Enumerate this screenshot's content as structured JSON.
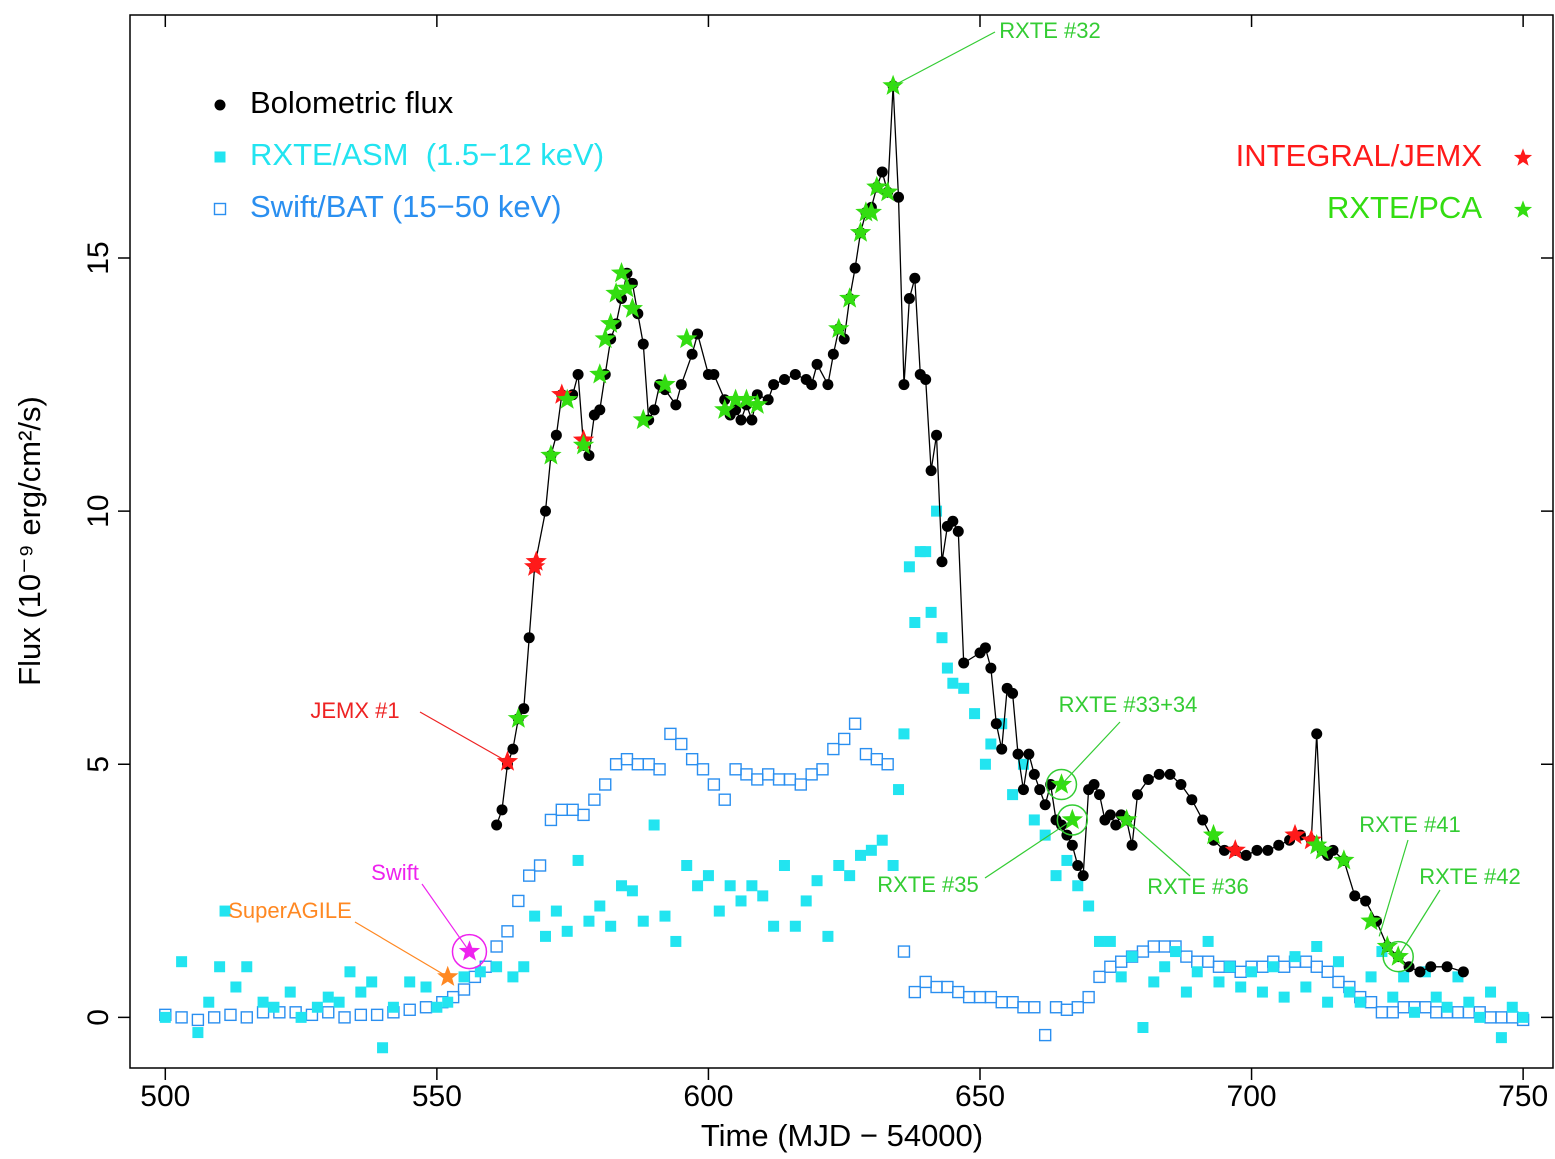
{
  "chart_data": {
    "type": "scatter",
    "x_label": "Time (MJD − 54000)",
    "y_label": "Flux (10⁻⁹ erg/cm²/s)",
    "xlim": [
      493.5,
      755.5
    ],
    "ylim": [
      -1,
      19.8
    ],
    "xticks": [
      500,
      550,
      600,
      650,
      700,
      750
    ],
    "yticks": [
      0,
      5,
      10,
      15
    ],
    "series": [
      {
        "name": "Bolometric flux",
        "color": "#000000",
        "marker": "dot",
        "line": true,
        "x": [
          561,
          562,
          563,
          564,
          565,
          566,
          567,
          568,
          570,
          571,
          572,
          573,
          575,
          576,
          577,
          578,
          579,
          580,
          581,
          582,
          583,
          584,
          585,
          586,
          587,
          588,
          589,
          590,
          591,
          592,
          594,
          595,
          597,
          598,
          600,
          601,
          603,
          604,
          605,
          606,
          607,
          608,
          609,
          611,
          612,
          614,
          616,
          618,
          619,
          620,
          622,
          623,
          624,
          625,
          626,
          627,
          628,
          629,
          630,
          631,
          632,
          633,
          634,
          635,
          636,
          637,
          638,
          639,
          640,
          641,
          642,
          643,
          644,
          645,
          646,
          647,
          650,
          651,
          652,
          653,
          654,
          655,
          656,
          657,
          658,
          659,
          660,
          661,
          662,
          663,
          664,
          665,
          666,
          667,
          668,
          669,
          670,
          671,
          672,
          673,
          674,
          675,
          676,
          677,
          678,
          679,
          681,
          683,
          685,
          687,
          689,
          691,
          693,
          695,
          697,
          699,
          701,
          703,
          705,
          707,
          709,
          711,
          712,
          713,
          714,
          715,
          717,
          719,
          721,
          723,
          725,
          727,
          729,
          731,
          733,
          736,
          739
        ],
        "values": [
          3.8,
          4.1,
          5.0,
          5.3,
          5.9,
          6.1,
          7.5,
          8.9,
          10.0,
          11.1,
          11.5,
          12.3,
          12.3,
          12.7,
          11.3,
          11.1,
          11.9,
          12.0,
          12.7,
          13.4,
          13.7,
          14.2,
          14.7,
          14.5,
          13.9,
          13.3,
          11.8,
          12.0,
          12.5,
          12.4,
          12.1,
          12.5,
          13.1,
          13.5,
          12.7,
          12.7,
          12.2,
          11.9,
          12.0,
          11.8,
          12.1,
          11.8,
          12.3,
          12.2,
          12.5,
          12.6,
          12.7,
          12.6,
          12.5,
          12.9,
          12.5,
          13.1,
          13.6,
          13.4,
          14.2,
          14.8,
          15.5,
          15.9,
          16.0,
          16.4,
          16.7,
          16.3,
          18.4,
          16.2,
          12.5,
          14.2,
          14.6,
          12.7,
          12.6,
          10.8,
          11.5,
          9.0,
          9.7,
          9.8,
          9.6,
          7.0,
          7.2,
          7.3,
          6.9,
          5.8,
          5.3,
          6.5,
          6.4,
          5.2,
          4.5,
          5.2,
          4.8,
          4.5,
          4.2,
          4.6,
          3.9,
          3.8,
          3.6,
          3.4,
          3.0,
          2.8,
          4.5,
          4.6,
          4.4,
          3.9,
          4.0,
          3.8,
          4.0,
          3.9,
          3.4,
          4.4,
          4.7,
          4.8,
          4.8,
          4.6,
          4.3,
          3.9,
          3.5,
          3.3,
          3.3,
          3.2,
          3.3,
          3.3,
          3.4,
          3.5,
          3.6,
          3.5,
          5.6,
          3.3,
          3.2,
          3.3,
          3.1,
          2.4,
          2.3,
          1.9,
          1.4,
          1.2,
          1.0,
          0.9,
          1.0,
          1.0,
          0.9
        ]
      },
      {
        "name": "RXTE/ASM  (1.5−12 keV)",
        "color": "#22e4f0",
        "marker": "square-filled",
        "x": [
          500,
          503,
          506,
          508,
          510,
          511,
          513,
          515,
          518,
          520,
          523,
          525,
          528,
          530,
          532,
          534,
          536,
          538,
          540,
          542,
          545,
          548,
          550,
          552,
          555,
          558,
          561,
          564,
          566,
          568,
          570,
          572,
          574,
          576,
          578,
          580,
          582,
          584,
          586,
          588,
          590,
          592,
          594,
          596,
          598,
          600,
          602,
          604,
          606,
          608,
          610,
          612,
          614,
          616,
          618,
          620,
          622,
          624,
          626,
          628,
          630,
          632,
          634,
          635,
          636,
          637,
          638,
          639,
          640,
          641,
          642,
          643,
          644,
          645,
          647,
          649,
          651,
          652,
          654,
          656,
          658,
          660,
          662,
          664,
          666,
          668,
          670,
          672,
          674,
          676,
          678,
          680,
          682,
          684,
          686,
          688,
          690,
          692,
          694,
          696,
          698,
          700,
          702,
          704,
          706,
          708,
          710,
          712,
          714,
          716,
          718,
          720,
          722,
          724,
          726,
          728,
          730,
          732,
          734,
          736,
          738,
          740,
          742,
          744,
          746,
          748,
          750
        ],
        "values": [
          0.0,
          1.1,
          -0.3,
          0.3,
          1.0,
          2.1,
          0.6,
          1.0,
          0.3,
          0.2,
          0.5,
          0.0,
          0.2,
          0.4,
          0.3,
          0.9,
          0.5,
          0.7,
          -0.6,
          0.2,
          0.7,
          0.6,
          0.2,
          0.3,
          0.8,
          0.9,
          1.0,
          0.8,
          1.0,
          2.0,
          1.6,
          2.1,
          1.7,
          3.1,
          1.9,
          2.2,
          1.8,
          2.6,
          2.5,
          1.9,
          3.8,
          2.0,
          1.5,
          3.0,
          2.6,
          2.8,
          2.1,
          2.6,
          2.3,
          2.6,
          2.4,
          1.8,
          3.0,
          1.8,
          2.3,
          2.7,
          1.6,
          3.0,
          2.8,
          3.2,
          3.3,
          3.5,
          3.0,
          4.5,
          5.6,
          8.9,
          7.8,
          9.2,
          9.2,
          8.0,
          10.0,
          7.5,
          6.9,
          6.6,
          6.5,
          6.0,
          5.0,
          5.4,
          5.8,
          4.4,
          5.0,
          3.9,
          3.6,
          2.8,
          3.1,
          2.6,
          2.2,
          1.5,
          1.5,
          0.8,
          1.2,
          -0.2,
          0.7,
          1.0,
          1.3,
          0.5,
          0.9,
          1.5,
          0.7,
          1.0,
          0.6,
          0.9,
          0.5,
          1.0,
          0.4,
          1.2,
          0.6,
          1.4,
          0.3,
          1.1,
          0.5,
          0.3,
          0.8,
          1.3,
          0.4,
          0.8,
          0.1,
          0.9,
          0.4,
          0.2,
          0.8,
          0.3,
          0.0,
          0.5,
          -0.4,
          0.2,
          0.0
        ]
      },
      {
        "name": "Swift/BAT (15−50 keV)",
        "color": "#2a8ff0",
        "marker": "square-open",
        "x": [
          500,
          503,
          506,
          509,
          512,
          515,
          518,
          521,
          524,
          527,
          530,
          533,
          536,
          539,
          542,
          545,
          548,
          551,
          553,
          555,
          557,
          559,
          561,
          563,
          565,
          567,
          569,
          571,
          573,
          575,
          577,
          579,
          581,
          583,
          585,
          587,
          589,
          591,
          593,
          595,
          597,
          599,
          601,
          603,
          605,
          607,
          609,
          611,
          613,
          615,
          617,
          619,
          621,
          623,
          625,
          627,
          629,
          631,
          633,
          636,
          638,
          640,
          642,
          644,
          646,
          648,
          650,
          652,
          654,
          656,
          658,
          660,
          662,
          664,
          666,
          668,
          670,
          672,
          674,
          676,
          678,
          680,
          682,
          684,
          686,
          688,
          690,
          692,
          694,
          696,
          698,
          700,
          702,
          704,
          706,
          708,
          710,
          712,
          714,
          716,
          718,
          720,
          722,
          724,
          726,
          728,
          730,
          732,
          734,
          736,
          738,
          740,
          742,
          744,
          746,
          748,
          750
        ],
        "values": [
          0.05,
          0.0,
          -0.05,
          0.0,
          0.05,
          0.0,
          0.1,
          0.1,
          0.1,
          0.05,
          0.1,
          0.0,
          0.05,
          0.05,
          0.1,
          0.15,
          0.2,
          0.3,
          0.4,
          0.55,
          0.8,
          1.0,
          1.4,
          1.7,
          2.3,
          2.8,
          3.0,
          3.9,
          4.1,
          4.1,
          4.0,
          4.3,
          4.6,
          5.0,
          5.1,
          5.0,
          5.0,
          4.9,
          5.6,
          5.4,
          5.1,
          4.9,
          4.6,
          4.3,
          4.9,
          4.8,
          4.7,
          4.8,
          4.7,
          4.7,
          4.6,
          4.8,
          4.9,
          5.3,
          5.5,
          5.8,
          5.2,
          5.1,
          5.0,
          1.3,
          0.5,
          0.7,
          0.6,
          0.6,
          0.5,
          0.4,
          0.4,
          0.4,
          0.3,
          0.3,
          0.2,
          0.2,
          -0.35,
          0.2,
          0.15,
          0.2,
          0.4,
          0.8,
          1.0,
          1.1,
          1.2,
          1.3,
          1.4,
          1.4,
          1.4,
          1.2,
          1.1,
          1.1,
          1.0,
          1.0,
          0.9,
          1.0,
          1.0,
          1.1,
          1.0,
          1.1,
          1.1,
          1.0,
          0.9,
          0.7,
          0.6,
          0.4,
          0.3,
          0.1,
          0.1,
          0.2,
          0.2,
          0.2,
          0.1,
          0.1,
          0.1,
          0.1,
          0.1,
          0.0,
          0.0,
          0.0,
          -0.05
        ]
      },
      {
        "name": "INTEGRAL/JEMX",
        "color": "#ff1a1a",
        "marker": "star",
        "x": [
          563,
          568,
          568.3,
          573,
          577,
          697,
          708,
          711
        ],
        "values": [
          5.05,
          8.9,
          9.0,
          12.3,
          11.4,
          3.3,
          3.6,
          3.5
        ]
      },
      {
        "name": "RXTE/PCA",
        "color": "#33dd11",
        "marker": "star",
        "x": [
          565,
          571,
          574,
          577,
          580,
          581,
          582,
          583,
          584,
          585,
          586,
          588,
          592,
          596,
          603,
          605,
          607,
          609,
          624,
          626,
          628,
          629,
          630,
          631,
          633,
          634,
          665,
          667,
          677,
          693,
          712,
          713,
          717,
          722,
          725,
          727
        ],
        "values": [
          5.9,
          11.1,
          12.2,
          11.3,
          12.7,
          13.4,
          13.7,
          14.3,
          14.7,
          14.4,
          14.0,
          11.8,
          12.5,
          13.4,
          12.0,
          12.2,
          12.2,
          12.1,
          13.6,
          14.2,
          15.5,
          15.9,
          15.9,
          16.4,
          16.3,
          18.4,
          4.6,
          3.9,
          3.9,
          3.6,
          3.4,
          3.3,
          3.1,
          1.9,
          1.4,
          1.2
        ]
      }
    ],
    "annotations": [
      {
        "text": "RXTE #32",
        "x": 634,
        "y": 18.4,
        "color": "#33cc33"
      },
      {
        "text": "JEMX #1",
        "x": 563,
        "y": 5.05,
        "color": "#ee2222"
      },
      {
        "text": "RXTE #33+34",
        "x": 665,
        "y": 4.6,
        "color": "#33cc33"
      },
      {
        "text": "RXTE #35",
        "x": 667,
        "y": 3.9,
        "color": "#33cc33"
      },
      {
        "text": "RXTE #36",
        "x": 677,
        "y": 3.9,
        "color": "#33cc33"
      },
      {
        "text": "RXTE #41",
        "x": 723.5,
        "y": 1.6,
        "color": "#33cc33"
      },
      {
        "text": "RXTE #42",
        "x": 727,
        "y": 1.2,
        "color": "#33cc33"
      },
      {
        "text": "Swift",
        "x": 556,
        "y": 1.3,
        "color": "#ee22ee",
        "marker": "star"
      },
      {
        "text": "SuperAGILE",
        "x": 552,
        "y": 0.8,
        "color": "#ff8822",
        "marker": "star"
      }
    ]
  }
}
